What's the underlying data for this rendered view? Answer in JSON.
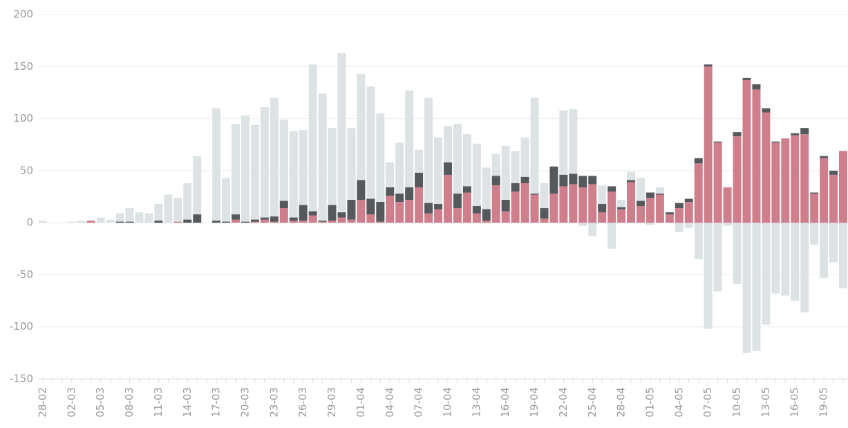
{
  "chart_data": {
    "type": "bar",
    "categories": [
      "28-02",
      null,
      null,
      "02-03",
      null,
      null,
      "05-03",
      null,
      null,
      "08-03",
      null,
      null,
      "11-03",
      null,
      null,
      "14-03",
      null,
      null,
      "17-03",
      null,
      null,
      "20-03",
      null,
      null,
      "23-03",
      null,
      null,
      "26-03",
      null,
      null,
      "29-03",
      null,
      null,
      "01-04",
      null,
      null,
      "04-04",
      null,
      null,
      "07-04",
      null,
      null,
      "10-04",
      null,
      null,
      "13-04",
      null,
      null,
      "16-04",
      null,
      null,
      "19-04",
      null,
      null,
      "22-04",
      null,
      null,
      "25-04",
      null,
      null,
      "28-04",
      null,
      null,
      "01-05",
      null,
      null,
      "04-05",
      null,
      null,
      "07-05",
      null,
      null,
      "10-05",
      null,
      null,
      "13-05",
      null,
      null,
      "16-05",
      null,
      null,
      "19-05",
      null,
      null
    ],
    "series": [
      {
        "color": "#dde3e5",
        "stacked": false,
        "values": [
          2,
          0,
          0,
          1,
          2,
          2,
          5,
          3,
          9,
          14,
          10,
          9,
          18,
          27,
          24,
          38,
          64,
          0,
          110,
          43,
          95,
          103,
          94,
          111,
          120,
          99,
          88,
          89,
          152,
          124,
          91,
          163,
          91,
          143,
          131,
          105,
          58,
          77,
          127,
          70,
          120,
          82,
          93,
          95,
          85,
          76,
          53,
          66,
          74,
          69,
          82,
          120,
          38,
          0,
          108,
          109,
          -3,
          -13,
          36,
          -25,
          22,
          49,
          43,
          -2,
          34,
          0,
          -9,
          -5,
          -35,
          -102,
          -66,
          -3,
          -59,
          -125,
          -123,
          -98,
          -68,
          -70,
          -75,
          -86,
          -21,
          -53,
          -38,
          -63
        ]
      },
      {
        "color": "#cf7f8c",
        "stacked": true,
        "values": [
          0,
          0,
          0,
          0,
          0,
          2,
          0,
          0,
          0,
          0,
          0,
          0,
          0,
          0,
          1,
          0,
          0,
          0,
          0,
          0,
          3,
          0,
          1,
          3,
          1,
          14,
          2,
          2,
          7,
          1,
          2,
          5,
          3,
          22,
          8,
          1,
          26,
          20,
          22,
          34,
          9,
          13,
          46,
          14,
          29,
          9,
          2,
          36,
          11,
          30,
          38,
          27,
          4,
          28,
          35,
          37,
          34,
          37,
          10,
          30,
          13,
          39,
          16,
          24,
          27,
          8,
          14,
          20,
          57,
          150,
          77,
          34,
          83,
          137,
          128,
          106,
          77,
          81,
          84,
          85,
          28,
          62,
          46,
          69
        ]
      },
      {
        "color": "#55595c",
        "stacked": true,
        "values": [
          0,
          0,
          0,
          0,
          0,
          0,
          0,
          0,
          1,
          1,
          0,
          0,
          2,
          0,
          0,
          3,
          8,
          0,
          2,
          1,
          5,
          1,
          2,
          2,
          5,
          7,
          3,
          15,
          4,
          1,
          15,
          5,
          19,
          19,
          15,
          19,
          8,
          8,
          12,
          14,
          10,
          5,
          12,
          14,
          6,
          7,
          11,
          9,
          11,
          8,
          6,
          1,
          10,
          26,
          11,
          10,
          11,
          8,
          8,
          5,
          2,
          2,
          5,
          5,
          1,
          2,
          5,
          3,
          5,
          2,
          1,
          0,
          4,
          2,
          5,
          4,
          1,
          0,
          2,
          6,
          1,
          2,
          4,
          0
        ]
      }
    ],
    "ylim": [
      -150,
      200
    ],
    "yticks": [
      -150,
      -100,
      -50,
      0,
      50,
      100,
      150,
      200
    ],
    "grid": true
  }
}
